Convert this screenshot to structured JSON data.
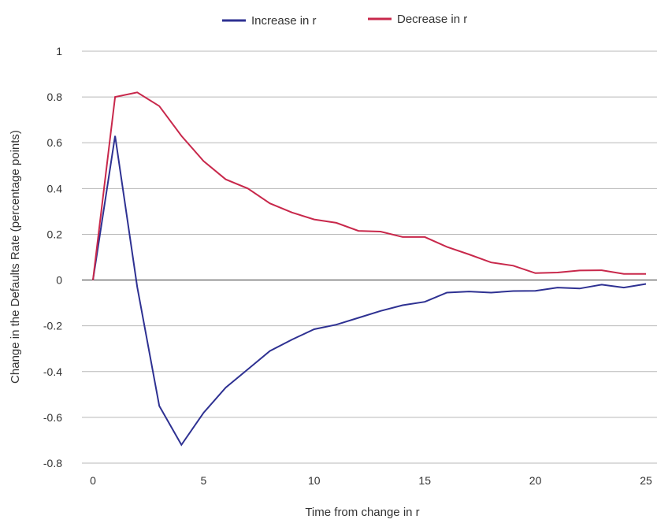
{
  "chart_data": {
    "type": "line",
    "title": "",
    "xlabel": "Time from change in r",
    "ylabel": "Change in the Defaults Rate (percentage points)",
    "xlim": [
      0,
      25
    ],
    "ylim": [
      -0.8,
      1
    ],
    "x_ticks": [
      "0",
      "5",
      "10",
      "15",
      "20",
      "25"
    ],
    "y_ticks": [
      "1",
      "0.8",
      "0.6",
      "0.4",
      "0.2",
      "0",
      "-0.2",
      "-0.4",
      "-0.6",
      "-0.8"
    ],
    "grid": true,
    "legend_position": "top",
    "x": [
      0,
      1,
      2,
      3,
      4,
      5,
      6,
      7,
      8,
      9,
      10,
      11,
      12,
      13,
      14,
      15,
      16,
      17,
      18,
      19,
      20,
      21,
      22,
      23,
      24,
      25
    ],
    "series": [
      {
        "name": "Increase in r",
        "color": "#2e3192",
        "values": [
          0,
          0.63,
          -0.03,
          -0.55,
          -0.72,
          -0.58,
          -0.47,
          -0.39,
          -0.31,
          -0.26,
          -0.215,
          -0.195,
          -0.165,
          -0.135,
          -0.11,
          -0.095,
          -0.055,
          -0.05,
          -0.055,
          -0.048,
          -0.047,
          -0.033,
          -0.037,
          -0.02,
          -0.033,
          -0.017
        ]
      },
      {
        "name": "Decrease in r",
        "color": "#c8284b",
        "values": [
          0,
          0.8,
          0.82,
          0.76,
          0.63,
          0.52,
          0.44,
          0.4,
          0.335,
          0.295,
          0.265,
          0.25,
          0.215,
          0.212,
          0.188,
          0.188,
          0.145,
          0.112,
          0.077,
          0.063,
          0.03,
          0.033,
          0.042,
          0.043,
          0.027,
          0.027
        ]
      }
    ]
  }
}
